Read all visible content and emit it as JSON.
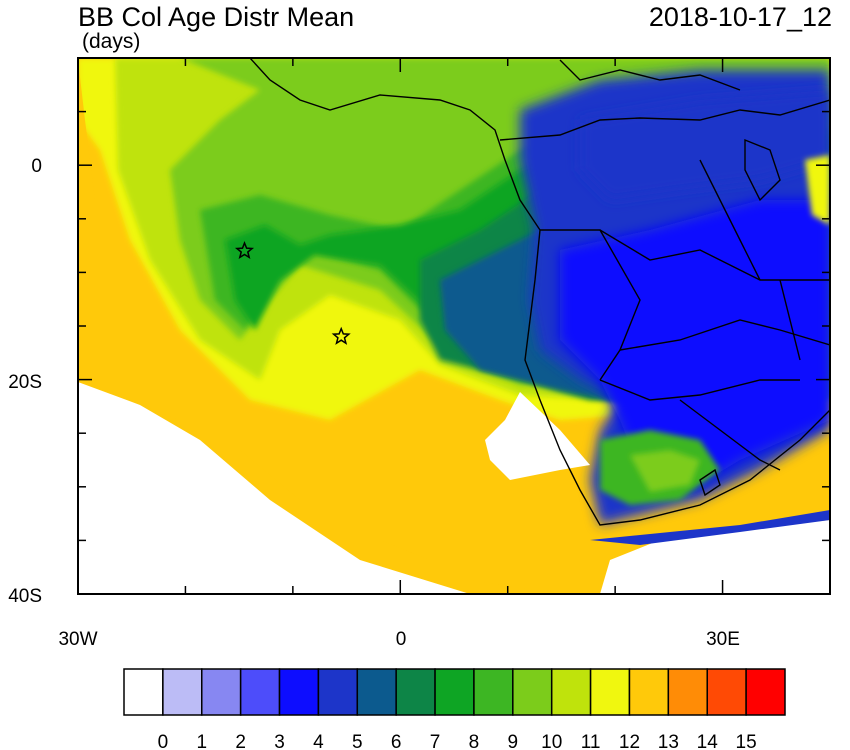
{
  "header": {
    "title": "BB Col Age Distr Mean",
    "units": "(days)",
    "datetime": "2018-10-17_12"
  },
  "map": {
    "lon_range": [
      -30,
      40
    ],
    "lat_range": [
      -40,
      10
    ],
    "lon_tick_labels": [
      "30W",
      "0",
      "30E"
    ],
    "lat_tick_labels": [
      "0",
      "20S",
      "40S"
    ],
    "markers": [
      {
        "name": "star",
        "lon": -14.5,
        "lat": -8
      },
      {
        "name": "star",
        "lon": -5.5,
        "lat": -16
      }
    ]
  },
  "colorbar": {
    "labels": [
      "0",
      "1",
      "2",
      "3",
      "4",
      "5",
      "6",
      "7",
      "8",
      "9",
      "10",
      "11",
      "12",
      "13",
      "14",
      "15"
    ],
    "colors": [
      "#ffffff",
      "#bcbcf6",
      "#8787f2",
      "#4d4dfa",
      "#0d0dff",
      "#1d35c9",
      "#0c5a8e",
      "#0d8547",
      "#0ea524",
      "#3db623",
      "#7ccc1b",
      "#bfe30c",
      "#f0f70f",
      "#ffc90a",
      "#ff8c06",
      "#ff4a05",
      "#ff0000"
    ]
  },
  "colors": {
    "ocean_far": "#ffc90a",
    "ocean_mid": "#f0f70f",
    "land_blue": "#1d35c9",
    "border": "#000000"
  }
}
